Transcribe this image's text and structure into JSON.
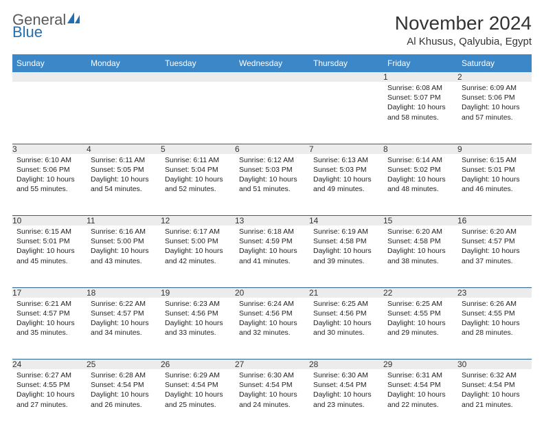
{
  "logo": {
    "word1": "General",
    "word2": "Blue",
    "word1_color": "#5a5a5a",
    "word2_color": "#1f6fb2",
    "icon_color": "#1f6fb2"
  },
  "title": "November 2024",
  "location": "Al Khusus, Qalyubia, Egypt",
  "colors": {
    "header_bg": "#3b87c8",
    "header_text": "#ffffff",
    "daynum_bg": "#ececec",
    "divider": "#2b5f8f",
    "body_text": "#222222"
  },
  "weekdays": [
    "Sunday",
    "Monday",
    "Tuesday",
    "Wednesday",
    "Thursday",
    "Friday",
    "Saturday"
  ],
  "weeks": [
    [
      null,
      null,
      null,
      null,
      null,
      {
        "day": "1",
        "sunrise": "Sunrise: 6:08 AM",
        "sunset": "Sunset: 5:07 PM",
        "daylight": "Daylight: 10 hours and 58 minutes."
      },
      {
        "day": "2",
        "sunrise": "Sunrise: 6:09 AM",
        "sunset": "Sunset: 5:06 PM",
        "daylight": "Daylight: 10 hours and 57 minutes."
      }
    ],
    [
      {
        "day": "3",
        "sunrise": "Sunrise: 6:10 AM",
        "sunset": "Sunset: 5:06 PM",
        "daylight": "Daylight: 10 hours and 55 minutes."
      },
      {
        "day": "4",
        "sunrise": "Sunrise: 6:11 AM",
        "sunset": "Sunset: 5:05 PM",
        "daylight": "Daylight: 10 hours and 54 minutes."
      },
      {
        "day": "5",
        "sunrise": "Sunrise: 6:11 AM",
        "sunset": "Sunset: 5:04 PM",
        "daylight": "Daylight: 10 hours and 52 minutes."
      },
      {
        "day": "6",
        "sunrise": "Sunrise: 6:12 AM",
        "sunset": "Sunset: 5:03 PM",
        "daylight": "Daylight: 10 hours and 51 minutes."
      },
      {
        "day": "7",
        "sunrise": "Sunrise: 6:13 AM",
        "sunset": "Sunset: 5:03 PM",
        "daylight": "Daylight: 10 hours and 49 minutes."
      },
      {
        "day": "8",
        "sunrise": "Sunrise: 6:14 AM",
        "sunset": "Sunset: 5:02 PM",
        "daylight": "Daylight: 10 hours and 48 minutes."
      },
      {
        "day": "9",
        "sunrise": "Sunrise: 6:15 AM",
        "sunset": "Sunset: 5:01 PM",
        "daylight": "Daylight: 10 hours and 46 minutes."
      }
    ],
    [
      {
        "day": "10",
        "sunrise": "Sunrise: 6:15 AM",
        "sunset": "Sunset: 5:01 PM",
        "daylight": "Daylight: 10 hours and 45 minutes."
      },
      {
        "day": "11",
        "sunrise": "Sunrise: 6:16 AM",
        "sunset": "Sunset: 5:00 PM",
        "daylight": "Daylight: 10 hours and 43 minutes."
      },
      {
        "day": "12",
        "sunrise": "Sunrise: 6:17 AM",
        "sunset": "Sunset: 5:00 PM",
        "daylight": "Daylight: 10 hours and 42 minutes."
      },
      {
        "day": "13",
        "sunrise": "Sunrise: 6:18 AM",
        "sunset": "Sunset: 4:59 PM",
        "daylight": "Daylight: 10 hours and 41 minutes."
      },
      {
        "day": "14",
        "sunrise": "Sunrise: 6:19 AM",
        "sunset": "Sunset: 4:58 PM",
        "daylight": "Daylight: 10 hours and 39 minutes."
      },
      {
        "day": "15",
        "sunrise": "Sunrise: 6:20 AM",
        "sunset": "Sunset: 4:58 PM",
        "daylight": "Daylight: 10 hours and 38 minutes."
      },
      {
        "day": "16",
        "sunrise": "Sunrise: 6:20 AM",
        "sunset": "Sunset: 4:57 PM",
        "daylight": "Daylight: 10 hours and 37 minutes."
      }
    ],
    [
      {
        "day": "17",
        "sunrise": "Sunrise: 6:21 AM",
        "sunset": "Sunset: 4:57 PM",
        "daylight": "Daylight: 10 hours and 35 minutes."
      },
      {
        "day": "18",
        "sunrise": "Sunrise: 6:22 AM",
        "sunset": "Sunset: 4:57 PM",
        "daylight": "Daylight: 10 hours and 34 minutes."
      },
      {
        "day": "19",
        "sunrise": "Sunrise: 6:23 AM",
        "sunset": "Sunset: 4:56 PM",
        "daylight": "Daylight: 10 hours and 33 minutes."
      },
      {
        "day": "20",
        "sunrise": "Sunrise: 6:24 AM",
        "sunset": "Sunset: 4:56 PM",
        "daylight": "Daylight: 10 hours and 32 minutes."
      },
      {
        "day": "21",
        "sunrise": "Sunrise: 6:25 AM",
        "sunset": "Sunset: 4:56 PM",
        "daylight": "Daylight: 10 hours and 30 minutes."
      },
      {
        "day": "22",
        "sunrise": "Sunrise: 6:25 AM",
        "sunset": "Sunset: 4:55 PM",
        "daylight": "Daylight: 10 hours and 29 minutes."
      },
      {
        "day": "23",
        "sunrise": "Sunrise: 6:26 AM",
        "sunset": "Sunset: 4:55 PM",
        "daylight": "Daylight: 10 hours and 28 minutes."
      }
    ],
    [
      {
        "day": "24",
        "sunrise": "Sunrise: 6:27 AM",
        "sunset": "Sunset: 4:55 PM",
        "daylight": "Daylight: 10 hours and 27 minutes."
      },
      {
        "day": "25",
        "sunrise": "Sunrise: 6:28 AM",
        "sunset": "Sunset: 4:54 PM",
        "daylight": "Daylight: 10 hours and 26 minutes."
      },
      {
        "day": "26",
        "sunrise": "Sunrise: 6:29 AM",
        "sunset": "Sunset: 4:54 PM",
        "daylight": "Daylight: 10 hours and 25 minutes."
      },
      {
        "day": "27",
        "sunrise": "Sunrise: 6:30 AM",
        "sunset": "Sunset: 4:54 PM",
        "daylight": "Daylight: 10 hours and 24 minutes."
      },
      {
        "day": "28",
        "sunrise": "Sunrise: 6:30 AM",
        "sunset": "Sunset: 4:54 PM",
        "daylight": "Daylight: 10 hours and 23 minutes."
      },
      {
        "day": "29",
        "sunrise": "Sunrise: 6:31 AM",
        "sunset": "Sunset: 4:54 PM",
        "daylight": "Daylight: 10 hours and 22 minutes."
      },
      {
        "day": "30",
        "sunrise": "Sunrise: 6:32 AM",
        "sunset": "Sunset: 4:54 PM",
        "daylight": "Daylight: 10 hours and 21 minutes."
      }
    ]
  ]
}
